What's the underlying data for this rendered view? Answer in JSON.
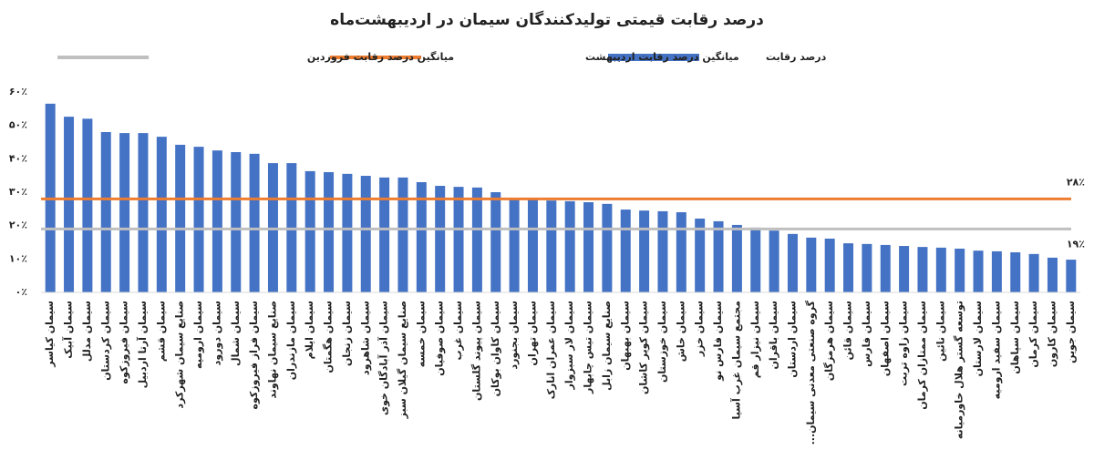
{
  "chart_data": {
    "type": "bar",
    "title": "درصد رقابت قیمتی تولیدکنندگان سیمان در اردیبهشت‌ماه",
    "categories": [
      "سیمان کیاسر",
      "سیمان آبیک",
      "سیمان مدلل",
      "سیمان کردستان",
      "سیمان فیروزکوه",
      "سیمان آرتا اردبیل",
      "سیمان قشم",
      "صنایع سیمان شهرکرد",
      "سیمان ارومیه",
      "سیمان دورود",
      "سیمان شمال",
      "سیمان فراز فیروزکوه",
      "صنایع سیمان نهاوند",
      "سیمان مازندران",
      "سیمان ایلام",
      "سیمان هگمتان",
      "سیمان زنجان",
      "سیمان شاهرود",
      "سیمان آذر آبادگان خوی",
      "صنایع سیمان گیلان سبز",
      "سیمان خمسه",
      "سیمان صوفیان",
      "سیمان غرب",
      "سیمان پیوند گلستان",
      "سیمان کاوان بوکان",
      "سیمان بجنورد",
      "سیمان تهران",
      "سیمان عمران انارک",
      "سیمان لار سبزوار",
      "سیمان تیس چابهار",
      "صنایع سیمان زابل",
      "سیمان بهبهان",
      "سیمان کویر کاشان",
      "سیمان خوزستان",
      "سیمان خاش",
      "سیمان خزر",
      "سیمان فارس نو",
      "مجتمع سیمان غرب آسیا",
      "سیمان نیزار قم",
      "سیمان باقران",
      "سیمان اردستان",
      "گروه صنعتی معدنی سیمان...",
      "سیمان هرمزگان",
      "سیمان قائن",
      "سیمان فارس",
      "سیمان اصفهان",
      "سیمان زاوه تربت",
      "سیمان ممتازان کرمان",
      "سیمان نائین",
      "توسعه گستر هلال خاورمیانه",
      "سیمان لارستان",
      "سیمان سفید ارومیه",
      "سیمان سپاهان",
      "سیمان کرمان",
      "سیمان کارون",
      "سیمان جوین"
    ],
    "series": [
      {
        "name": "درصد رقابت",
        "color": "#4472c4",
        "values": [
          56.5,
          52.6,
          52,
          48,
          47.7,
          47.7,
          46.6,
          44.2,
          43.6,
          42.5,
          42,
          41.5,
          38.7,
          38.7,
          36.3,
          36,
          35.5,
          34.9,
          34.4,
          34.4,
          33,
          31.9,
          31.6,
          31.4,
          30,
          27.8,
          27.8,
          27.5,
          27.3,
          27,
          26.5,
          24.8,
          24.5,
          24.3,
          24,
          22.1,
          21.3,
          20.2,
          19.4,
          18.5,
          17.5,
          16.4,
          16.1,
          14.7,
          14.5,
          14.2,
          13.9,
          13.6,
          13.4,
          13.1,
          12.5,
          12.3,
          12,
          11.5,
          10.4,
          9.8
        ]
      }
    ],
    "reference_lines": [
      {
        "name": "میانگین درصد رقابت اردیبهشت",
        "color": "#ed7d31",
        "value": 28,
        "value_label": "۲۸٪"
      },
      {
        "name": "میانگین درصد رقابت فروردین",
        "color": "#bfbfbf",
        "value": 19,
        "value_label": "۱۹٪"
      }
    ],
    "ylim": [
      0,
      60
    ],
    "yticks": [
      {
        "value": 0,
        "label": "۰٪"
      },
      {
        "value": 10,
        "label": "۱۰٪"
      },
      {
        "value": 20,
        "label": "۲۰٪"
      },
      {
        "value": 30,
        "label": "۳۰٪"
      },
      {
        "value": 40,
        "label": "۴۰٪"
      },
      {
        "value": 50,
        "label": "۵۰٪"
      },
      {
        "value": 60,
        "label": "۶۰٪"
      }
    ],
    "grid": false
  }
}
